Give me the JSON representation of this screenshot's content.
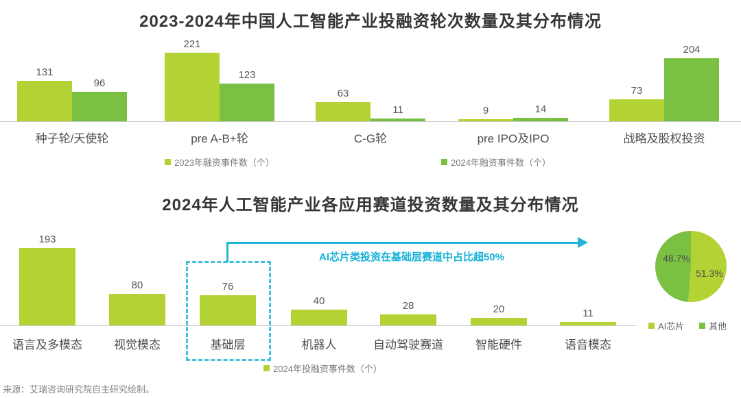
{
  "page": {
    "source": "来源：艾瑞咨询研究院自主研究绘制。"
  },
  "colors": {
    "green_2023_light": "#b3d334",
    "green_2024_dark": "#7ac143",
    "teal_annotation": "#23b5d8"
  },
  "chart_data": [
    {
      "type": "bar",
      "title": "2023-2024年中国人工智能产业投融资轮次数量及其分布情况",
      "categories": [
        "种子轮/天使轮",
        "pre A-B+轮",
        "C-G轮",
        "pre IPO及IPO",
        "战略及股权投资"
      ],
      "series": [
        {
          "name": "2023年融资事件数（个）",
          "values": [
            131,
            221,
            63,
            9,
            73
          ],
          "color": "#b3d334"
        },
        {
          "name": "2024年融资事件数（个）",
          "values": [
            96,
            123,
            11,
            14,
            204
          ],
          "color": "#7ac143"
        }
      ],
      "ylim": [
        0,
        230
      ],
      "grid": false,
      "legend_position": "bottom"
    },
    {
      "type": "bar",
      "title": "2024年人工智能产业各应用赛道投资数量及其分布情况",
      "categories": [
        "语言及多模态",
        "视觉模态",
        "基础层",
        "机器人",
        "自动驾驶赛道",
        "智能硬件",
        "语音模态"
      ],
      "series": [
        {
          "name": "2024年投融资事件数（个）",
          "values": [
            193,
            80,
            76,
            40,
            28,
            20,
            11
          ],
          "color": "#b3d334"
        }
      ],
      "ylim": [
        0,
        200
      ],
      "grid": false,
      "legend_position": "bottom",
      "annotation": {
        "text": "AI芯片类投资在基础层赛道中占比超50%",
        "highlight_category": "基础层"
      }
    },
    {
      "type": "pie",
      "labels": [
        "AI芯片",
        "其他"
      ],
      "values": [
        51.3,
        48.7
      ],
      "value_labels": [
        "51.3%",
        "48.7%"
      ],
      "colors": [
        "#b3d334",
        "#7ac143"
      ],
      "legend_position": "bottom"
    }
  ]
}
